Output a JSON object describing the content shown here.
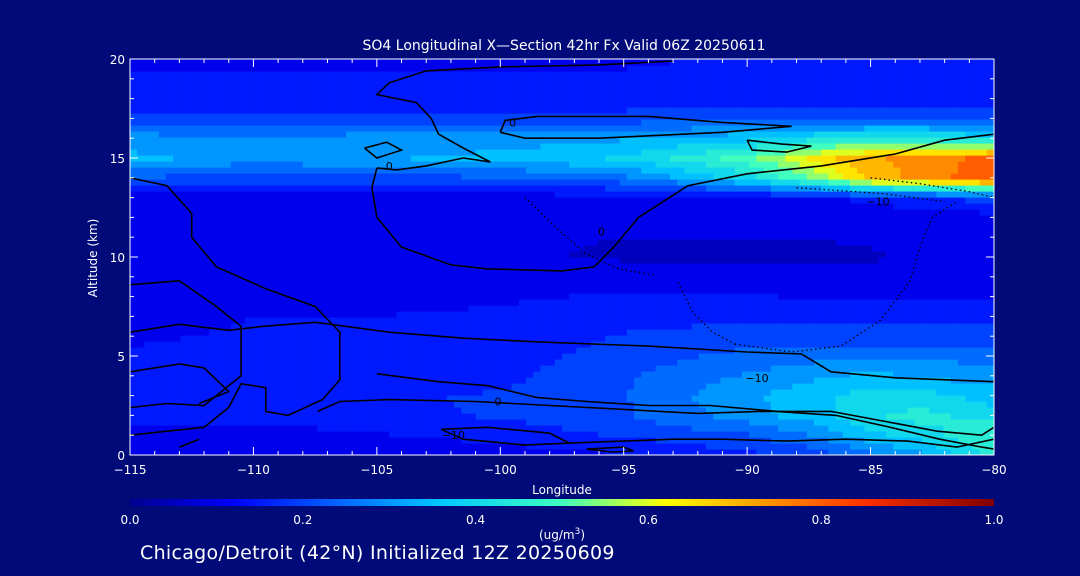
{
  "chart_data": {
    "type": "heatmap",
    "title": "SO4 Longitudinal X—Section 42hr  Fx Valid 06Z 20250611",
    "xlabel": "Longitude",
    "ylabel": "Altitude (km)",
    "xlim": [
      -115,
      -80
    ],
    "ylim": [
      0,
      20
    ],
    "x_ticks": [
      -115,
      -110,
      -105,
      -100,
      -95,
      -90,
      -85,
      -80
    ],
    "x_tick_labels": [
      "−115",
      "−110",
      "−105",
      "−100",
      "−95",
      "−90",
      "−85",
      "−80"
    ],
    "y_ticks": [
      0,
      5,
      10,
      15,
      20
    ],
    "y_tick_labels": [
      "0",
      "5",
      "10",
      "15",
      "20"
    ],
    "colorbar": {
      "min": 0.0,
      "max": 1.0,
      "ticks": [
        0.0,
        0.2,
        0.4,
        0.6,
        0.8,
        1.0
      ],
      "tick_labels": [
        "0.0",
        "0.2",
        "0.4",
        "0.6",
        "0.8",
        "1.0"
      ],
      "units_label": "(ug/m",
      "units_sup": "3",
      "units_close": ")"
    },
    "contour_labels": [
      {
        "text": "0",
        "lon": -99.5,
        "alt": 16.8
      },
      {
        "text": "0",
        "lon": -104.5,
        "alt": 14.6
      },
      {
        "text": "0",
        "lon": -95.9,
        "alt": 11.3
      },
      {
        "text": "0",
        "lon": -100.1,
        "alt": 2.7
      },
      {
        "text": "−10",
        "lon": -84.7,
        "alt": 12.8
      },
      {
        "text": "−10",
        "lon": -89.6,
        "alt": 3.9
      },
      {
        "text": "−10",
        "lon": -101.9,
        "alt": 1.0
      }
    ],
    "concentration_field": {
      "lon": [
        -115,
        -110,
        -105,
        -100,
        -95,
        -90,
        -87,
        -85,
        -83,
        -80
      ],
      "alt": [
        0,
        1,
        2,
        3,
        4,
        5,
        6,
        8,
        10,
        12,
        13,
        14,
        15,
        16,
        17,
        18,
        20
      ],
      "values": [
        [
          0.08,
          0.08,
          0.09,
          0.1,
          0.12,
          0.16,
          0.2,
          0.26,
          0.3,
          0.45
        ],
        [
          0.1,
          0.1,
          0.12,
          0.14,
          0.18,
          0.22,
          0.28,
          0.36,
          0.4,
          0.48
        ],
        [
          0.14,
          0.14,
          0.16,
          0.18,
          0.22,
          0.3,
          0.36,
          0.42,
          0.44,
          0.4
        ],
        [
          0.15,
          0.16,
          0.17,
          0.18,
          0.22,
          0.32,
          0.36,
          0.4,
          0.4,
          0.35
        ],
        [
          0.14,
          0.15,
          0.15,
          0.16,
          0.22,
          0.28,
          0.32,
          0.34,
          0.32,
          0.3
        ],
        [
          0.13,
          0.14,
          0.14,
          0.15,
          0.2,
          0.24,
          0.26,
          0.26,
          0.26,
          0.26
        ],
        [
          0.12,
          0.13,
          0.13,
          0.14,
          0.18,
          0.2,
          0.2,
          0.2,
          0.2,
          0.2
        ],
        [
          0.1,
          0.12,
          0.12,
          0.12,
          0.13,
          0.13,
          0.12,
          0.12,
          0.12,
          0.12
        ],
        [
          0.09,
          0.1,
          0.1,
          0.08,
          0.07,
          0.07,
          0.07,
          0.07,
          0.08,
          0.09
        ],
        [
          0.08,
          0.09,
          0.09,
          0.08,
          0.08,
          0.08,
          0.08,
          0.09,
          0.1,
          0.1
        ],
        [
          0.1,
          0.1,
          0.1,
          0.1,
          0.1,
          0.11,
          0.12,
          0.14,
          0.16,
          0.2
        ],
        [
          0.22,
          0.2,
          0.2,
          0.22,
          0.26,
          0.4,
          0.55,
          0.7,
          0.74,
          0.82
        ],
        [
          0.34,
          0.3,
          0.32,
          0.34,
          0.38,
          0.5,
          0.65,
          0.72,
          0.74,
          0.8
        ],
        [
          0.3,
          0.28,
          0.3,
          0.3,
          0.32,
          0.36,
          0.42,
          0.44,
          0.44,
          0.4
        ],
        [
          0.2,
          0.2,
          0.2,
          0.2,
          0.2,
          0.22,
          0.22,
          0.22,
          0.22,
          0.22
        ],
        [
          0.14,
          0.14,
          0.14,
          0.14,
          0.14,
          0.15,
          0.15,
          0.15,
          0.15,
          0.15
        ],
        [
          0.12,
          0.12,
          0.12,
          0.12,
          0.12,
          0.13,
          0.13,
          0.13,
          0.13,
          0.13
        ]
      ]
    },
    "contours_solid": [
      [
        [
          -115,
          8.6
        ],
        [
          -113,
          8.8
        ],
        [
          -111.5,
          7.5
        ],
        [
          -110.5,
          6.5
        ],
        [
          -110.5,
          4.0
        ],
        [
          -112,
          2.5
        ],
        [
          -113.5,
          2.6
        ],
        [
          -115,
          2.4
        ]
      ],
      [
        [
          -115,
          4.2
        ],
        [
          -113,
          4.6
        ],
        [
          -112,
          4.4
        ],
        [
          -111,
          3.2
        ],
        [
          -112.2,
          2.6
        ]
      ],
      [
        [
          -115,
          14.0
        ],
        [
          -113.5,
          13.6
        ],
        [
          -112.5,
          12.2
        ],
        [
          -112.5,
          11.0
        ],
        [
          -111.5,
          9.5
        ],
        [
          -109.5,
          8.4
        ],
        [
          -107.5,
          7.5
        ],
        [
          -106.5,
          6.2
        ],
        [
          -106.5,
          3.8
        ],
        [
          -107.2,
          2.8
        ],
        [
          -108.6,
          2.0
        ],
        [
          -109.5,
          2.2
        ],
        [
          -109.5,
          3.4
        ],
        [
          -110.5,
          3.6
        ],
        [
          -111,
          2.4
        ],
        [
          -112,
          1.4
        ],
        [
          -113.5,
          1.2
        ],
        [
          -115,
          1.0
        ]
      ],
      [
        [
          -113,
          0.4
        ],
        [
          -112.2,
          0.8
        ]
      ],
      [
        [
          -105,
          14.5
        ],
        [
          -104.2,
          14.4
        ],
        [
          -103,
          14.6
        ],
        [
          -101.5,
          15.0
        ],
        [
          -100.4,
          14.8
        ],
        [
          -101.5,
          15.5
        ],
        [
          -102.5,
          16.2
        ],
        [
          -102.8,
          17.0
        ],
        [
          -103.4,
          17.8
        ],
        [
          -105,
          18.2
        ],
        [
          -104.5,
          18.8
        ],
        [
          -103,
          19.4
        ],
        [
          -100,
          19.6
        ],
        [
          -96,
          19.7
        ],
        [
          -93,
          19.9
        ]
      ],
      [
        [
          -105,
          14.5
        ],
        [
          -105.2,
          13.5
        ],
        [
          -105,
          12.0
        ],
        [
          -104,
          10.5
        ],
        [
          -102,
          9.6
        ],
        [
          -100.5,
          9.4
        ],
        [
          -97.5,
          9.3
        ],
        [
          -96.2,
          9.5
        ],
        [
          -95.4,
          10.5
        ],
        [
          -94.4,
          12.0
        ],
        [
          -92.4,
          13.6
        ],
        [
          -90.0,
          14.2
        ],
        [
          -87.0,
          14.6
        ],
        [
          -84,
          15.2
        ],
        [
          -82,
          15.9
        ],
        [
          -80,
          16.2
        ]
      ],
      [
        [
          -100,
          16.3
        ],
        [
          -99.8,
          16.9
        ],
        [
          -98.5,
          17.1
        ],
        [
          -94,
          17.1
        ],
        [
          -91,
          16.8
        ],
        [
          -88.2,
          16.6
        ],
        [
          -91,
          16.3
        ],
        [
          -96,
          16.0
        ],
        [
          -99,
          16.0
        ],
        [
          -100,
          16.3
        ]
      ],
      [
        [
          -105.5,
          15.5
        ],
        [
          -104.6,
          15.8
        ],
        [
          -104.0,
          15.4
        ],
        [
          -105.0,
          15.0
        ],
        [
          -105.5,
          15.5
        ]
      ],
      [
        [
          -90,
          15.9
        ],
        [
          -88.6,
          15.7
        ],
        [
          -87.4,
          15.6
        ],
        [
          -88.4,
          15.3
        ],
        [
          -89.8,
          15.4
        ],
        [
          -90,
          15.9
        ]
      ],
      [
        [
          -115,
          6.2
        ],
        [
          -113,
          6.6
        ],
        [
          -111,
          6.3
        ],
        [
          -109.6,
          6.5
        ],
        [
          -107.5,
          6.7
        ],
        [
          -104.5,
          6.2
        ],
        [
          -101.5,
          5.9
        ],
        [
          -98.3,
          5.7
        ],
        [
          -94,
          5.5
        ],
        [
          -90,
          5.2
        ],
        [
          -87.8,
          5.1
        ],
        [
          -86.6,
          4.2
        ],
        [
          -84,
          3.9
        ],
        [
          -80,
          3.7
        ]
      ],
      [
        [
          -107.4,
          2.2
        ],
        [
          -106.5,
          2.7
        ],
        [
          -104.5,
          2.8
        ],
        [
          -101,
          2.7
        ],
        [
          -98,
          2.5
        ],
        [
          -92,
          2.1
        ],
        [
          -89.5,
          2.2
        ],
        [
          -86.6,
          2.2
        ],
        [
          -84,
          1.6
        ],
        [
          -82.3,
          1.2
        ],
        [
          -80.5,
          1.0
        ],
        [
          -80,
          1.4
        ]
      ],
      [
        [
          -105,
          4.1
        ],
        [
          -102.5,
          3.7
        ],
        [
          -100.5,
          3.5
        ],
        [
          -98.5,
          2.9
        ],
        [
          -96.5,
          2.7
        ],
        [
          -94,
          2.5
        ],
        [
          -91.5,
          2.5
        ],
        [
          -88.8,
          2.2
        ],
        [
          -86.4,
          2.0
        ],
        [
          -84.2,
          1.4
        ],
        [
          -82.2,
          0.8
        ],
        [
          -80.5,
          0.4
        ],
        [
          -80,
          0.3
        ]
      ],
      [
        [
          -102.4,
          1.3
        ],
        [
          -100.5,
          1.4
        ],
        [
          -98,
          1.1
        ],
        [
          -97.2,
          0.6
        ],
        [
          -99,
          0.5
        ],
        [
          -101.5,
          0.8
        ],
        [
          -102.4,
          1.3
        ]
      ],
      [
        [
          -97.2,
          0.6
        ],
        [
          -95,
          0.7
        ],
        [
          -93,
          0.8
        ],
        [
          -91,
          0.8
        ],
        [
          -88.4,
          0.7
        ],
        [
          -86,
          0.8
        ],
        [
          -83.5,
          0.7
        ],
        [
          -81.5,
          0.4
        ],
        [
          -80,
          0.8
        ]
      ],
      [
        [
          -96.5,
          0.3
        ],
        [
          -95,
          0.4
        ],
        [
          -94.6,
          0.2
        ],
        [
          -95.5,
          0.15
        ],
        [
          -96.5,
          0.3
        ]
      ]
    ],
    "contours_dotted": [
      [
        [
          -85,
          14.0
        ],
        [
          -83,
          13.7
        ],
        [
          -81,
          13.3
        ],
        [
          -80,
          13.0
        ]
      ],
      [
        [
          -88,
          13.5
        ],
        [
          -84.5,
          13.2
        ],
        [
          -82,
          12.8
        ]
      ],
      [
        [
          -90.5,
          5.6
        ],
        [
          -88.2,
          5.2
        ],
        [
          -86.2,
          5.5
        ],
        [
          -84.6,
          6.8
        ],
        [
          -83.4,
          8.8
        ],
        [
          -83.0,
          10.5
        ],
        [
          -82.5,
          12.0
        ],
        [
          -81.5,
          12.8
        ]
      ],
      [
        [
          -92.8,
          8.7
        ],
        [
          -92.2,
          7.2
        ],
        [
          -91.4,
          6.2
        ],
        [
          -90.5,
          5.6
        ]
      ],
      [
        [
          -99,
          13.0
        ],
        [
          -98,
          11.8
        ],
        [
          -96.6,
          10.2
        ],
        [
          -95.2,
          9.4
        ],
        [
          -93.8,
          9.1
        ]
      ]
    ]
  },
  "caption": "Chicago/Detroit (42°N) Initialized 12Z 20250609"
}
